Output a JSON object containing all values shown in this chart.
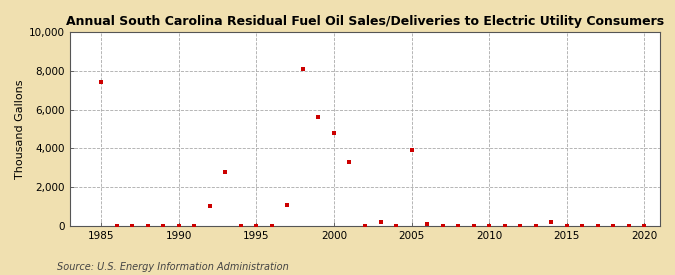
{
  "title": "Annual South Carolina Residual Fuel Oil Sales/Deliveries to Electric Utility Consumers",
  "ylabel": "Thousand Gallons",
  "source": "Source: U.S. Energy Information Administration",
  "background_color": "#f0e0b0",
  "plot_background_color": "#ffffff",
  "marker_color": "#cc0000",
  "marker": "s",
  "marker_size": 3.5,
  "xlim": [
    1983,
    2021
  ],
  "ylim": [
    0,
    10000
  ],
  "xticks": [
    1985,
    1990,
    1995,
    2000,
    2005,
    2010,
    2015,
    2020
  ],
  "yticks": [
    0,
    2000,
    4000,
    6000,
    8000,
    10000
  ],
  "ytick_labels": [
    "0",
    "2,000",
    "4,000",
    "6,000",
    "8,000",
    "10,000"
  ],
  "data": [
    [
      1985,
      7400
    ],
    [
      1986,
      0
    ],
    [
      1987,
      0
    ],
    [
      1988,
      0
    ],
    [
      1989,
      0
    ],
    [
      1990,
      0
    ],
    [
      1991,
      0
    ],
    [
      1992,
      1000
    ],
    [
      1993,
      2800
    ],
    [
      1994,
      0
    ],
    [
      1995,
      0
    ],
    [
      1996,
      0
    ],
    [
      1997,
      1100
    ],
    [
      1998,
      8100
    ],
    [
      1999,
      5600
    ],
    [
      2000,
      4800
    ],
    [
      2001,
      3300
    ],
    [
      2002,
      0
    ],
    [
      2003,
      200
    ],
    [
      2004,
      0
    ],
    [
      2005,
      3900
    ],
    [
      2006,
      100
    ],
    [
      2007,
      0
    ],
    [
      2008,
      0
    ],
    [
      2009,
      0
    ],
    [
      2010,
      0
    ],
    [
      2011,
      0
    ],
    [
      2012,
      0
    ],
    [
      2013,
      0
    ],
    [
      2014,
      200
    ],
    [
      2015,
      0
    ],
    [
      2016,
      0
    ],
    [
      2017,
      0
    ],
    [
      2018,
      0
    ],
    [
      2019,
      0
    ],
    [
      2020,
      0
    ]
  ]
}
